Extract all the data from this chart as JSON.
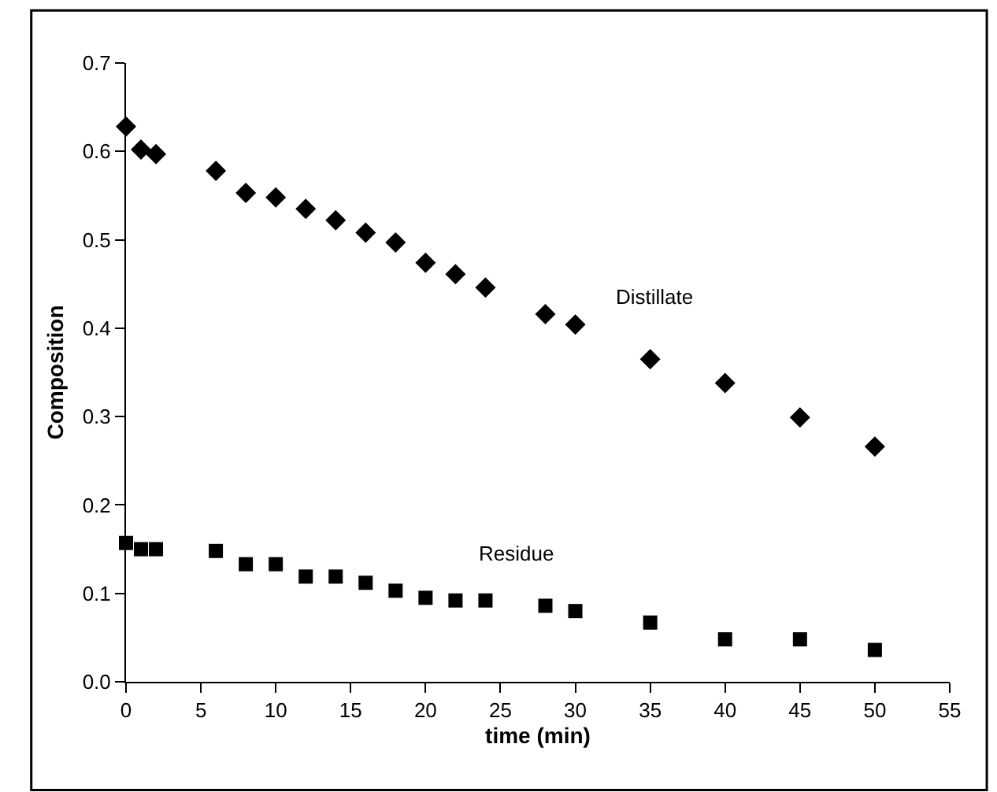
{
  "chart_data": {
    "type": "scatter",
    "xlabel": "time (min)",
    "ylabel": "Composition",
    "x": [
      0,
      1,
      2,
      6,
      8,
      10,
      12,
      14,
      16,
      18,
      20,
      22,
      24,
      28,
      30,
      35,
      40,
      45,
      50
    ],
    "series": [
      {
        "name": "Distillate",
        "color": "#000000",
        "marker": "diamond",
        "values": [
          0.628,
          0.602,
          0.597,
          0.578,
          0.553,
          0.548,
          0.535,
          0.522,
          0.508,
          0.497,
          0.474,
          0.461,
          0.446,
          0.416,
          0.404,
          0.365,
          0.338,
          0.299,
          0.266
        ]
      },
      {
        "name": "Residue",
        "color": "#000000",
        "marker": "square",
        "values": [
          0.157,
          0.15,
          0.15,
          0.148,
          0.133,
          0.133,
          0.119,
          0.119,
          0.112,
          0.103,
          0.095,
          0.092,
          0.092,
          0.086,
          0.08,
          0.067,
          0.048,
          0.048,
          0.036
        ]
      }
    ],
    "xlim": [
      0,
      55
    ],
    "xticks": [
      0,
      5,
      10,
      15,
      20,
      25,
      30,
      35,
      40,
      45,
      50,
      55
    ],
    "ylim": [
      0,
      0.7
    ],
    "yticks": [
      {
        "value": 0,
        "label": "0.0"
      },
      0.1,
      0.2,
      0.3,
      0.4,
      0.5,
      0.6,
      0.7
    ],
    "grid": false,
    "legend": false
  }
}
